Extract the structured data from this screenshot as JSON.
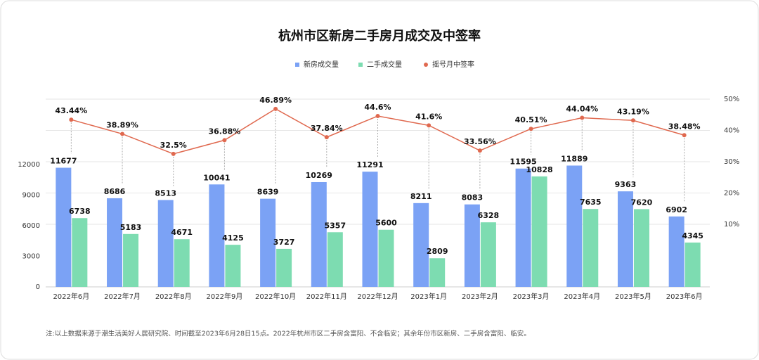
{
  "chart_data": {
    "type": "bar",
    "title": "杭州市区新房二手房月成交及中签率",
    "categories": [
      "2022年6月",
      "2022年7月",
      "2022年8月",
      "2022年9月",
      "2022年10月",
      "2022年11月",
      "2022年12月",
      "2023年1月",
      "2023年2月",
      "2023年3月",
      "2023年4月",
      "2023年5月",
      "2023年6月"
    ],
    "series": [
      {
        "name": "新房成交量",
        "type": "bar",
        "color": "#7ba2f5",
        "values": [
          11677,
          8686,
          8513,
          10041,
          8639,
          10269,
          11291,
          8211,
          8083,
          11595,
          11889,
          9363,
          6902
        ]
      },
      {
        "name": "二手成交量",
        "type": "bar",
        "color": "#7ddcb1",
        "values": [
          6738,
          5183,
          4671,
          4125,
          3727,
          5357,
          5600,
          2809,
          6328,
          10828,
          7635,
          7620,
          4345
        ]
      },
      {
        "name": "摇号月中签率",
        "type": "line",
        "axis": "y2",
        "color": "#e0694f",
        "values": [
          43.44,
          38.89,
          32.5,
          36.88,
          46.89,
          37.84,
          44.6,
          41.6,
          33.56,
          40.51,
          44.04,
          43.19,
          38.48
        ],
        "value_labels": [
          "43.44%",
          "38.89%",
          "32.5%",
          "36.88%",
          "46.89%",
          "37.84%",
          "44.6%",
          "41.6%",
          "33.56%",
          "40.51%",
          "44.04%",
          "43.19%",
          "38.48%"
        ]
      }
    ],
    "ylim": [
      0,
      18400
    ],
    "yticks": [
      0,
      3000,
      6000,
      9000,
      12000
    ],
    "y2lim": [
      -10,
      50
    ],
    "y2ticks": [
      {
        "value": 10,
        "label": "10%"
      },
      {
        "value": 20,
        "label": "20%"
      },
      {
        "value": 30,
        "label": "30%"
      },
      {
        "value": 40,
        "label": "40%"
      },
      {
        "value": 50,
        "label": "50%"
      }
    ],
    "grid": true,
    "legend": "top",
    "note": "注:以上数据来源于潮生活美好人居研究院、时间截至2023年6月28日15点。2022年杭州市区二手房含富阳、不含临安；其余年份市区新房、二手房含富阳、临安。"
  }
}
